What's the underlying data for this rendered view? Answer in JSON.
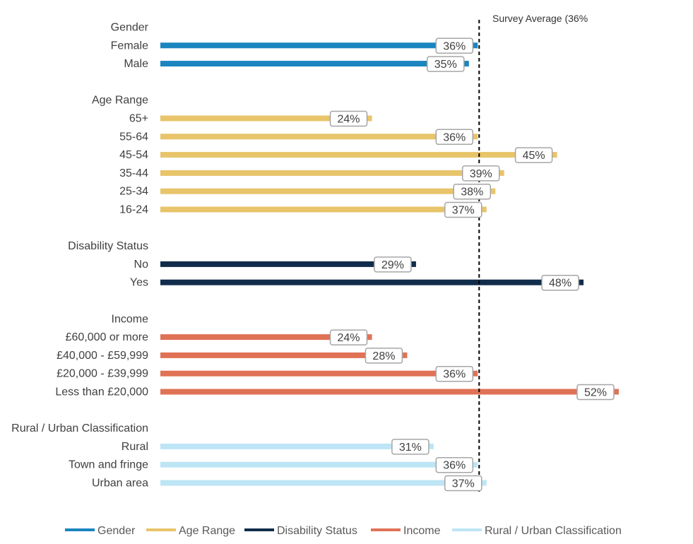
{
  "chart_data": {
    "type": "bar",
    "orientation": "horizontal",
    "reference_line": {
      "label": "Survey Average (36%",
      "value": 36
    },
    "xlim": [
      0,
      52
    ],
    "value_suffix": "%",
    "groups": [
      {
        "name": "Gender",
        "color": "#1A85BF",
        "items": [
          {
            "label": "Female",
            "value": 36
          },
          {
            "label": "Male",
            "value": 35
          }
        ]
      },
      {
        "name": "Age Range",
        "color": "#E8C46A",
        "items": [
          {
            "label": "65+",
            "value": 24
          },
          {
            "label": "55-64",
            "value": 36
          },
          {
            "label": "45-54",
            "value": 45
          },
          {
            "label": "35-44",
            "value": 39
          },
          {
            "label": "25-34",
            "value": 38
          },
          {
            "label": "16-24",
            "value": 37
          }
        ]
      },
      {
        "name": "Disability Status",
        "color": "#112C4B",
        "items": [
          {
            "label": "No",
            "value": 29
          },
          {
            "label": "Yes",
            "value": 48
          }
        ]
      },
      {
        "name": "Income",
        "color": "#E07256",
        "items": [
          {
            "label": "£60,000 or more",
            "value": 24
          },
          {
            "label": "£40,000 - £59,999",
            "value": 28
          },
          {
            "label": "£20,000 - £39,999",
            "value": 36
          },
          {
            "label": "Less than £20,000",
            "value": 52
          }
        ]
      },
      {
        "name": "Rural / Urban Classification",
        "color": "#BDE5F5",
        "items": [
          {
            "label": "Rural",
            "value": 31
          },
          {
            "label": "Town and fringe",
            "value": 36
          },
          {
            "label": "Urban area",
            "value": 37
          }
        ]
      }
    ],
    "legend": {
      "position": "bottom",
      "entries": [
        {
          "label": "Gender",
          "color": "#1A85BF"
        },
        {
          "label": "Age Range",
          "color": "#E8C46A"
        },
        {
          "label": "Disability Status",
          "color": "#112C4B"
        },
        {
          "label": "Income",
          "color": "#E07256"
        },
        {
          "label": "Rural / Urban Classification",
          "color": "#BDE5F5"
        }
      ]
    }
  }
}
